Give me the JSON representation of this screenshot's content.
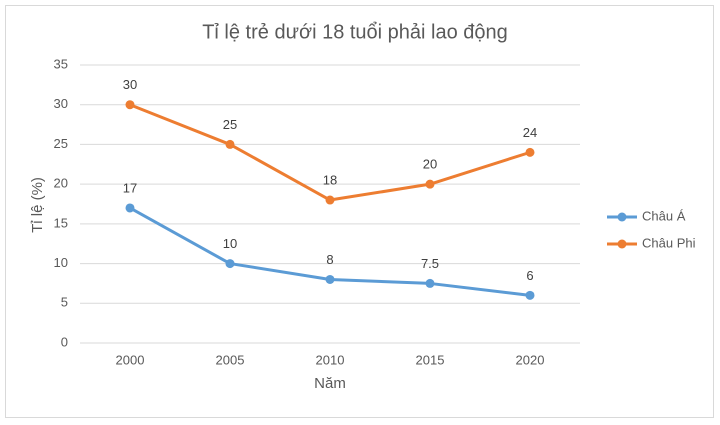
{
  "chart_data": {
    "type": "line",
    "title": "Tỉ lệ trẻ dưới 18 tuổi phải lao động",
    "x_label": "Năm",
    "y_label": "Tỉ lệ (%)",
    "categories": [
      "2000",
      "2005",
      "2010",
      "2015",
      "2020"
    ],
    "series": [
      {
        "name": "Châu Á",
        "color": "#5b9bd5",
        "values": [
          17,
          10,
          8,
          7.5,
          6
        ]
      },
      {
        "name": "Châu Phi",
        "color": "#ed7d31",
        "values": [
          30,
          25,
          18,
          20,
          24
        ]
      }
    ],
    "ylim": [
      0,
      35
    ],
    "yticks": [
      0,
      5,
      10,
      15,
      20,
      25,
      30,
      35
    ],
    "grid": true,
    "legend": "right"
  }
}
